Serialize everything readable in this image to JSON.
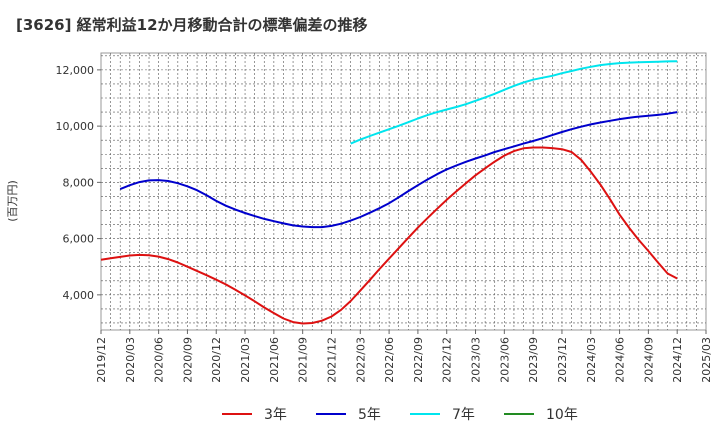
{
  "title": "[3626]  経常利益12か月移動合計の標準偏差の推移",
  "chart_data": {
    "type": "line",
    "title": "[3626]  経常利益12か月移動合計の標準偏差の推移",
    "xlabel": "",
    "ylabel": "(百万円)",
    "ylim": [
      2750,
      12600
    ],
    "yticks": [
      4000,
      6000,
      8000,
      10000,
      12000
    ],
    "ytick_labels": [
      "4,000",
      "6,000",
      "8,000",
      "10,000",
      "12,000"
    ],
    "x_categories": [
      "2019/12",
      "2020/03",
      "2020/06",
      "2020/09",
      "2020/12",
      "2021/03",
      "2021/06",
      "2021/09",
      "2021/12",
      "2022/03",
      "2022/06",
      "2022/09",
      "2022/12",
      "2023/03",
      "2023/06",
      "2023/09",
      "2023/12",
      "2024/03",
      "2024/06",
      "2024/09",
      "2024/12",
      "2025/03"
    ],
    "grid": true,
    "legend_position": "bottom",
    "series": [
      {
        "name": "3年",
        "color": "#dd1111",
        "points": [
          [
            "2019/12",
            5250
          ],
          [
            "2020/01",
            5300
          ],
          [
            "2020/02",
            5350
          ],
          [
            "2020/03",
            5400
          ],
          [
            "2020/04",
            5420
          ],
          [
            "2020/05",
            5410
          ],
          [
            "2020/06",
            5360
          ],
          [
            "2020/07",
            5270
          ],
          [
            "2020/08",
            5150
          ],
          [
            "2020/09",
            5000
          ],
          [
            "2020/10",
            4850
          ],
          [
            "2020/11",
            4700
          ],
          [
            "2020/12",
            4540
          ],
          [
            "2021/01",
            4370
          ],
          [
            "2021/02",
            4180
          ],
          [
            "2021/03",
            3980
          ],
          [
            "2021/04",
            3770
          ],
          [
            "2021/05",
            3550
          ],
          [
            "2021/06",
            3350
          ],
          [
            "2021/07",
            3160
          ],
          [
            "2021/08",
            3030
          ],
          [
            "2021/09",
            2980
          ],
          [
            "2021/10",
            3000
          ],
          [
            "2021/11",
            3080
          ],
          [
            "2021/12",
            3230
          ],
          [
            "2022/01",
            3470
          ],
          [
            "2022/02",
            3780
          ],
          [
            "2022/03",
            4150
          ],
          [
            "2022/04",
            4530
          ],
          [
            "2022/05",
            4920
          ],
          [
            "2022/06",
            5290
          ],
          [
            "2022/07",
            5660
          ],
          [
            "2022/08",
            6030
          ],
          [
            "2022/09",
            6390
          ],
          [
            "2022/10",
            6730
          ],
          [
            "2022/11",
            7060
          ],
          [
            "2022/12",
            7380
          ],
          [
            "2023/01",
            7680
          ],
          [
            "2023/02",
            7970
          ],
          [
            "2023/03",
            8250
          ],
          [
            "2023/04",
            8500
          ],
          [
            "2023/05",
            8740
          ],
          [
            "2023/06",
            8950
          ],
          [
            "2023/07",
            9110
          ],
          [
            "2023/08",
            9210
          ],
          [
            "2023/09",
            9240
          ],
          [
            "2023/10",
            9240
          ],
          [
            "2023/11",
            9220
          ],
          [
            "2023/12",
            9180
          ],
          [
            "2024/01",
            9080
          ],
          [
            "2024/02",
            8800
          ],
          [
            "2024/03",
            8380
          ],
          [
            "2024/04",
            7920
          ],
          [
            "2024/05",
            7400
          ],
          [
            "2024/06",
            6850
          ],
          [
            "2024/07",
            6380
          ],
          [
            "2024/08",
            5950
          ],
          [
            "2024/09",
            5560
          ],
          [
            "2024/10",
            5150
          ],
          [
            "2024/11",
            4760
          ],
          [
            "2024/12",
            4580
          ]
        ]
      },
      {
        "name": "5年",
        "color": "#0000cc",
        "points": [
          [
            "2020/02",
            7760
          ],
          [
            "2020/03",
            7900
          ],
          [
            "2020/04",
            8010
          ],
          [
            "2020/05",
            8070
          ],
          [
            "2020/06",
            8080
          ],
          [
            "2020/07",
            8050
          ],
          [
            "2020/08",
            7970
          ],
          [
            "2020/09",
            7860
          ],
          [
            "2020/10",
            7720
          ],
          [
            "2020/11",
            7540
          ],
          [
            "2020/12",
            7340
          ],
          [
            "2021/01",
            7170
          ],
          [
            "2021/02",
            7030
          ],
          [
            "2021/03",
            6910
          ],
          [
            "2021/04",
            6800
          ],
          [
            "2021/05",
            6700
          ],
          [
            "2021/06",
            6620
          ],
          [
            "2021/07",
            6540
          ],
          [
            "2021/08",
            6470
          ],
          [
            "2021/09",
            6430
          ],
          [
            "2021/10",
            6410
          ],
          [
            "2021/11",
            6410
          ],
          [
            "2021/12",
            6450
          ],
          [
            "2022/01",
            6530
          ],
          [
            "2022/02",
            6640
          ],
          [
            "2022/03",
            6770
          ],
          [
            "2022/04",
            6920
          ],
          [
            "2022/05",
            7080
          ],
          [
            "2022/06",
            7260
          ],
          [
            "2022/07",
            7470
          ],
          [
            "2022/08",
            7690
          ],
          [
            "2022/09",
            7900
          ],
          [
            "2022/10",
            8100
          ],
          [
            "2022/11",
            8290
          ],
          [
            "2022/12",
            8460
          ],
          [
            "2023/01",
            8600
          ],
          [
            "2023/02",
            8730
          ],
          [
            "2023/03",
            8850
          ],
          [
            "2023/04",
            8960
          ],
          [
            "2023/05",
            9080
          ],
          [
            "2023/06",
            9180
          ],
          [
            "2023/07",
            9280
          ],
          [
            "2023/08",
            9380
          ],
          [
            "2023/09",
            9470
          ],
          [
            "2023/10",
            9570
          ],
          [
            "2023/11",
            9680
          ],
          [
            "2023/12",
            9790
          ],
          [
            "2024/01",
            9890
          ],
          [
            "2024/02",
            9980
          ],
          [
            "2024/03",
            10060
          ],
          [
            "2024/04",
            10130
          ],
          [
            "2024/05",
            10190
          ],
          [
            "2024/06",
            10250
          ],
          [
            "2024/07",
            10300
          ],
          [
            "2024/08",
            10340
          ],
          [
            "2024/09",
            10370
          ],
          [
            "2024/10",
            10400
          ],
          [
            "2024/11",
            10440
          ],
          [
            "2024/12",
            10500
          ]
        ]
      },
      {
        "name": "7年",
        "color": "#00e5ee",
        "points": [
          [
            "2022/02",
            9380
          ],
          [
            "2022/03",
            9520
          ],
          [
            "2022/04",
            9650
          ],
          [
            "2022/05",
            9770
          ],
          [
            "2022/06",
            9890
          ],
          [
            "2022/07",
            10010
          ],
          [
            "2022/08",
            10140
          ],
          [
            "2022/09",
            10270
          ],
          [
            "2022/10",
            10390
          ],
          [
            "2022/11",
            10500
          ],
          [
            "2022/12",
            10590
          ],
          [
            "2023/01",
            10680
          ],
          [
            "2023/02",
            10780
          ],
          [
            "2023/03",
            10900
          ],
          [
            "2023/04",
            11020
          ],
          [
            "2023/05",
            11150
          ],
          [
            "2023/06",
            11290
          ],
          [
            "2023/07",
            11430
          ],
          [
            "2023/08",
            11550
          ],
          [
            "2023/09",
            11650
          ],
          [
            "2023/10",
            11720
          ],
          [
            "2023/11",
            11790
          ],
          [
            "2023/12",
            11880
          ],
          [
            "2024/01",
            11960
          ],
          [
            "2024/02",
            12040
          ],
          [
            "2024/03",
            12110
          ],
          [
            "2024/04",
            12170
          ],
          [
            "2024/05",
            12210
          ],
          [
            "2024/06",
            12240
          ],
          [
            "2024/07",
            12260
          ],
          [
            "2024/08",
            12270
          ],
          [
            "2024/09",
            12280
          ],
          [
            "2024/10",
            12290
          ],
          [
            "2024/11",
            12300
          ],
          [
            "2024/12",
            12310
          ]
        ]
      },
      {
        "name": "10年",
        "color": "#228b22",
        "points": []
      }
    ]
  }
}
